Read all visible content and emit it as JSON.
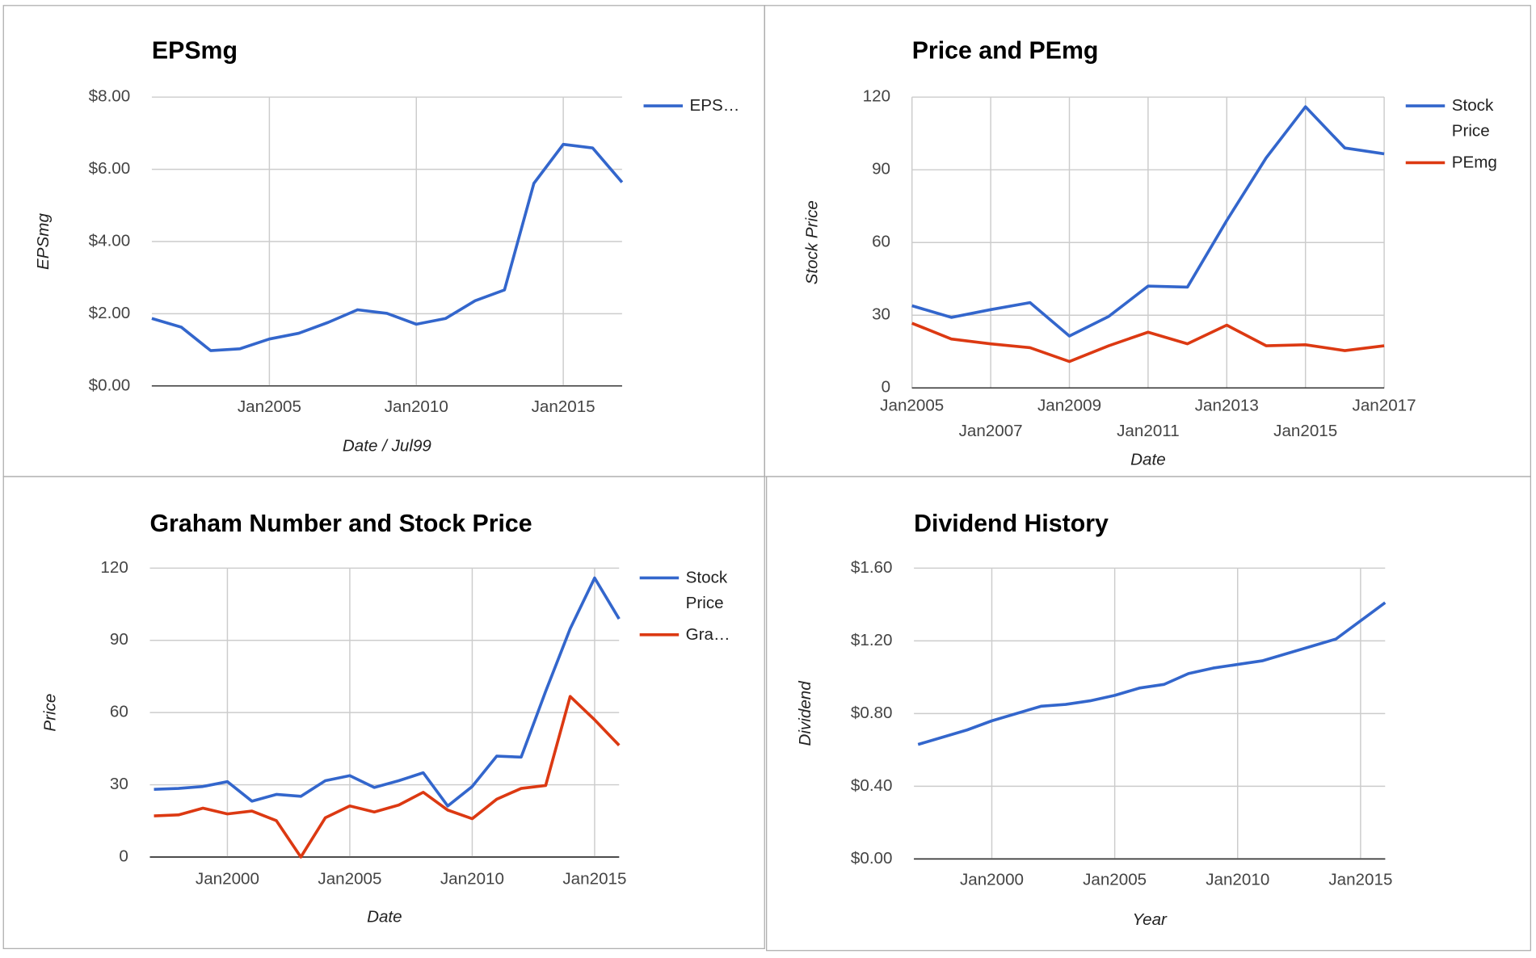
{
  "chart_data": [
    {
      "type": "line",
      "title": "EPSmg",
      "x_label": "Date / Jul99",
      "y_label": "EPSmg",
      "x": [
        "2001-01",
        "2002-01",
        "2003-01",
        "2004-01",
        "2005-01",
        "2006-01",
        "2007-01",
        "2008-01",
        "2009-01",
        "2010-01",
        "2011-01",
        "2012-01",
        "2013-01",
        "2014-01",
        "2015-01",
        "2016-01",
        "2017-01"
      ],
      "xlim": [
        "2001-01",
        "2017-01"
      ],
      "xticks": [
        {
          "value": "2005-01",
          "label": "Jan2005"
        },
        {
          "value": "2010-01",
          "label": "Jan2010"
        },
        {
          "value": "2015-01",
          "label": "Jan2015"
        }
      ],
      "ylim": [
        0,
        8
      ],
      "yticks": [
        {
          "value": 0,
          "label": "$0.00"
        },
        {
          "value": 2,
          "label": "$2.00"
        },
        {
          "value": 4,
          "label": "$4.00"
        },
        {
          "value": 6,
          "label": "$6.00"
        },
        {
          "value": 8,
          "label": "$8.00"
        }
      ],
      "grid": true,
      "legend": "right",
      "series": [
        {
          "name": "EPS…",
          "color": "#3366cc",
          "values": [
            1.87,
            1.63,
            0.98,
            1.03,
            1.3,
            1.46,
            1.76,
            2.11,
            2.01,
            1.71,
            1.87,
            2.36,
            2.66,
            5.61,
            6.69,
            6.59,
            5.64
          ]
        }
      ]
    },
    {
      "type": "line",
      "title": "Price and PEmg",
      "x_label": "Date",
      "y_label": "Stock Price",
      "x": [
        "2005-01",
        "2006-01",
        "2007-01",
        "2008-01",
        "2009-01",
        "2010-01",
        "2011-01",
        "2012-01",
        "2013-01",
        "2014-01",
        "2015-01",
        "2016-01",
        "2017-01"
      ],
      "xlim": [
        "2005-01",
        "2017-01"
      ],
      "xticks": [
        {
          "value": "2005-01",
          "label": "Jan2005"
        },
        {
          "value": "2007-01",
          "label": "Jan2007"
        },
        {
          "value": "2009-01",
          "label": "Jan2009"
        },
        {
          "value": "2011-01",
          "label": "Jan2011"
        },
        {
          "value": "2013-01",
          "label": "Jan2013"
        },
        {
          "value": "2015-01",
          "label": "Jan2015"
        },
        {
          "value": "2017-01",
          "label": "Jan2017"
        }
      ],
      "ylim": [
        0,
        120
      ],
      "yticks": [
        0,
        30,
        60,
        90,
        120
      ],
      "grid": true,
      "legend": "right",
      "series": [
        {
          "name": "Stock Price",
          "color": "#3366cc",
          "values": [
            33.9,
            29.1,
            32.3,
            35.2,
            21.4,
            29.5,
            42.0,
            41.6,
            69.1,
            94.9,
            116.0,
            99.0,
            96.6
          ]
        },
        {
          "name": "PEmg",
          "color": "#dc3912",
          "values": [
            26.7,
            20.2,
            18.2,
            16.6,
            10.9,
            17.4,
            23.0,
            18.2,
            25.9,
            17.4,
            17.8,
            15.4,
            17.4
          ]
        }
      ]
    },
    {
      "type": "line",
      "title": "Graham Number and Stock Price",
      "x_label": "Date",
      "y_label": "Price",
      "x": [
        "1997-01",
        "1998-01",
        "1999-01",
        "2000-01",
        "2001-01",
        "2002-01",
        "2003-01",
        "2004-01",
        "2005-01",
        "2006-01",
        "2007-01",
        "2008-01",
        "2009-01",
        "2010-01",
        "2011-01",
        "2012-01",
        "2013-01",
        "2014-01",
        "2015-01",
        "2016-01"
      ],
      "xlim": [
        "1996-11",
        "2016-01"
      ],
      "xticks": [
        {
          "value": "2000-01",
          "label": "Jan2000"
        },
        {
          "value": "2005-01",
          "label": "Jan2005"
        },
        {
          "value": "2010-01",
          "label": "Jan2010"
        },
        {
          "value": "2015-01",
          "label": "Jan2015"
        }
      ],
      "ylim": [
        0,
        120
      ],
      "yticks": [
        0,
        30,
        60,
        90,
        120
      ],
      "grid": true,
      "legend": "right",
      "series": [
        {
          "name": "Stock Price",
          "color": "#3366cc",
          "values": [
            28.1,
            28.5,
            29.3,
            31.3,
            23.2,
            26.0,
            25.2,
            31.7,
            33.8,
            28.9,
            31.7,
            35.0,
            21.2,
            29.3,
            41.9,
            41.5,
            68.8,
            94.8,
            115.9,
            98.9
          ]
        },
        {
          "name": "Gra…",
          "color": "#dc3912",
          "values": [
            17.1,
            17.5,
            20.3,
            17.9,
            19.1,
            15.1,
            0,
            16.3,
            21.2,
            18.7,
            21.6,
            26.9,
            19.5,
            15.9,
            24.0,
            28.5,
            29.7,
            66.7,
            57.0,
            46.4
          ]
        }
      ]
    },
    {
      "type": "line",
      "title": "Dividend History",
      "x_label": "Year",
      "y_label": "Dividend",
      "x": [
        "1997-01",
        "1998-01",
        "1999-01",
        "2000-01",
        "2001-01",
        "2002-01",
        "2003-01",
        "2004-01",
        "2005-01",
        "2006-01",
        "2007-01",
        "2008-01",
        "2009-01",
        "2010-01",
        "2011-01",
        "2012-01",
        "2013-01",
        "2014-01",
        "2015-01",
        "2016-01"
      ],
      "xlim": [
        "1996-11",
        "2016-01"
      ],
      "xticks": [
        {
          "value": "2000-01",
          "label": "Jan2000"
        },
        {
          "value": "2005-01",
          "label": "Jan2005"
        },
        {
          "value": "2010-01",
          "label": "Jan2010"
        },
        {
          "value": "2015-01",
          "label": "Jan2015"
        }
      ],
      "ylim": [
        0,
        1.6
      ],
      "yticks": [
        {
          "value": 0,
          "label": "$0.00"
        },
        {
          "value": 0.4,
          "label": "$0.40"
        },
        {
          "value": 0.8,
          "label": "$0.80"
        },
        {
          "value": 1.2,
          "label": "$1.20"
        },
        {
          "value": 1.6,
          "label": "$1.60"
        }
      ],
      "grid": true,
      "legend": "none",
      "series": [
        {
          "color": "#3366cc",
          "values": [
            0.63,
            0.67,
            0.71,
            0.76,
            0.8,
            0.84,
            0.85,
            0.87,
            0.9,
            0.94,
            0.96,
            1.02,
            1.05,
            1.07,
            1.09,
            1.13,
            1.17,
            1.21,
            1.31,
            1.41
          ]
        }
      ]
    }
  ]
}
